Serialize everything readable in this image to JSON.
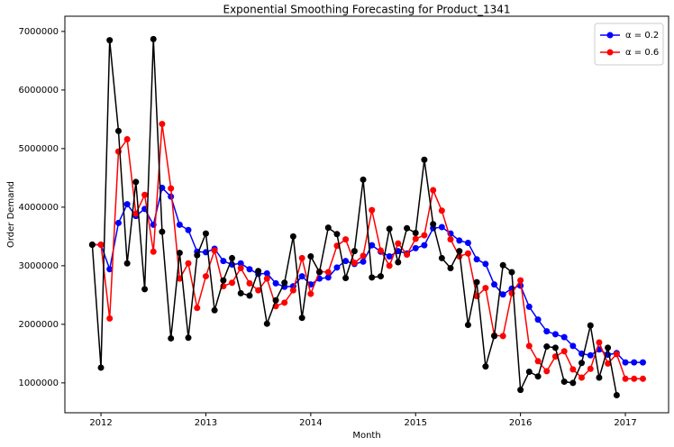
{
  "chart_data": {
    "type": "line",
    "title": "Exponential Smoothing Forecasting for Product_1341",
    "x_label": "Month",
    "y_label": "Order Demand",
    "x": [
      2011.917,
      2012.0,
      2012.083,
      2012.167,
      2012.25,
      2012.333,
      2012.417,
      2012.5,
      2012.583,
      2012.667,
      2012.75,
      2012.833,
      2012.917,
      2013.0,
      2013.083,
      2013.167,
      2013.25,
      2013.333,
      2013.417,
      2013.5,
      2013.583,
      2013.667,
      2013.75,
      2013.833,
      2013.917,
      2014.0,
      2014.083,
      2014.167,
      2014.25,
      2014.333,
      2014.417,
      2014.5,
      2014.583,
      2014.667,
      2014.75,
      2014.833,
      2014.917,
      2015.0,
      2015.083,
      2015.167,
      2015.25,
      2015.333,
      2015.417,
      2015.5,
      2015.583,
      2015.667,
      2015.75,
      2015.833,
      2015.917,
      2016.0,
      2016.083,
      2016.167,
      2016.25,
      2016.333,
      2016.417,
      2016.5,
      2016.583,
      2016.667,
      2016.75,
      2016.833,
      2016.917,
      2017.0,
      2017.083,
      2017.167
    ],
    "series": [
      {
        "name": "α = 0.2",
        "color": "#0000ff",
        "values": [
          3360000,
          3360000,
          2940000,
          3730000,
          4050000,
          3850000,
          3970000,
          3700000,
          4330000,
          4180000,
          3700000,
          3610000,
          3240000,
          3230000,
          3290000,
          3080000,
          3020000,
          3040000,
          2940000,
          2860000,
          2870000,
          2700000,
          2640000,
          2650000,
          2820000,
          2680000,
          2780000,
          2800000,
          2970000,
          3080000,
          3030000,
          3070000,
          3350000,
          3240000,
          3160000,
          3250000,
          3210000,
          3300000,
          3350000,
          3640000,
          3660000,
          3550000,
          3430000,
          3390000,
          3110000,
          3030000,
          2680000,
          2510000,
          2610000,
          2660000,
          2300000,
          2080000,
          1880000,
          1830000,
          1780000,
          1630000,
          1500000,
          1470000,
          1570000,
          1480000,
          1510000,
          1350000,
          1350000,
          1350000
        ]
      },
      {
        "name": "α = 0.6",
        "color": "#ff0000",
        "values": [
          3360000,
          3360000,
          2100000,
          4950000,
          5160000,
          3890000,
          4210000,
          3240000,
          5420000,
          4320000,
          2780000,
          3040000,
          2280000,
          2820000,
          3260000,
          2650000,
          2710000,
          2960000,
          2700000,
          2580000,
          2780000,
          2310000,
          2370000,
          2580000,
          3130000,
          2520000,
          2900000,
          2890000,
          3340000,
          3450000,
          3050000,
          3170000,
          3950000,
          3260000,
          3000000,
          3380000,
          3190000,
          3460000,
          3520000,
          4290000,
          3940000,
          3450000,
          3160000,
          3210000,
          2480000,
          2620000,
          1810000,
          1800000,
          2530000,
          2750000,
          1630000,
          1370000,
          1200000,
          1450000,
          1540000,
          1230000,
          1090000,
          1240000,
          1690000,
          1330000,
          1490000,
          1070000,
          1070000,
          1070000
        ]
      },
      {
        "color": "#000000",
        "values": [
          3360000,
          1260000,
          6850000,
          5300000,
          3040000,
          4430000,
          2600000,
          6870000,
          3580000,
          1760000,
          3220000,
          1770000,
          3180000,
          3550000,
          2240000,
          2750000,
          3130000,
          2530000,
          2490000,
          2910000,
          2010000,
          2410000,
          2710000,
          3500000,
          2110000,
          3160000,
          2890000,
          3650000,
          3540000,
          2790000,
          3250000,
          4470000,
          2800000,
          2820000,
          3630000,
          3060000,
          3640000,
          3560000,
          4810000,
          3710000,
          3130000,
          2960000,
          3250000,
          1990000,
          2720000,
          1280000,
          1800000,
          3010000,
          2890000,
          880000,
          1190000,
          1110000,
          1620000,
          1600000,
          1020000,
          1000000,
          1340000,
          1980000,
          1090000,
          1600000,
          790000,
          null,
          null,
          null
        ]
      }
    ],
    "xlim": [
      2011.656,
      2017.412
    ],
    "xticks": [
      2012,
      2013,
      2014,
      2015,
      2016,
      2017
    ],
    "ylim": [
      490000,
      7260000
    ],
    "yticks": [
      1000000,
      2000000,
      3000000,
      4000000,
      5000000,
      6000000,
      7000000
    ],
    "grid": false,
    "legend": "upper right"
  }
}
